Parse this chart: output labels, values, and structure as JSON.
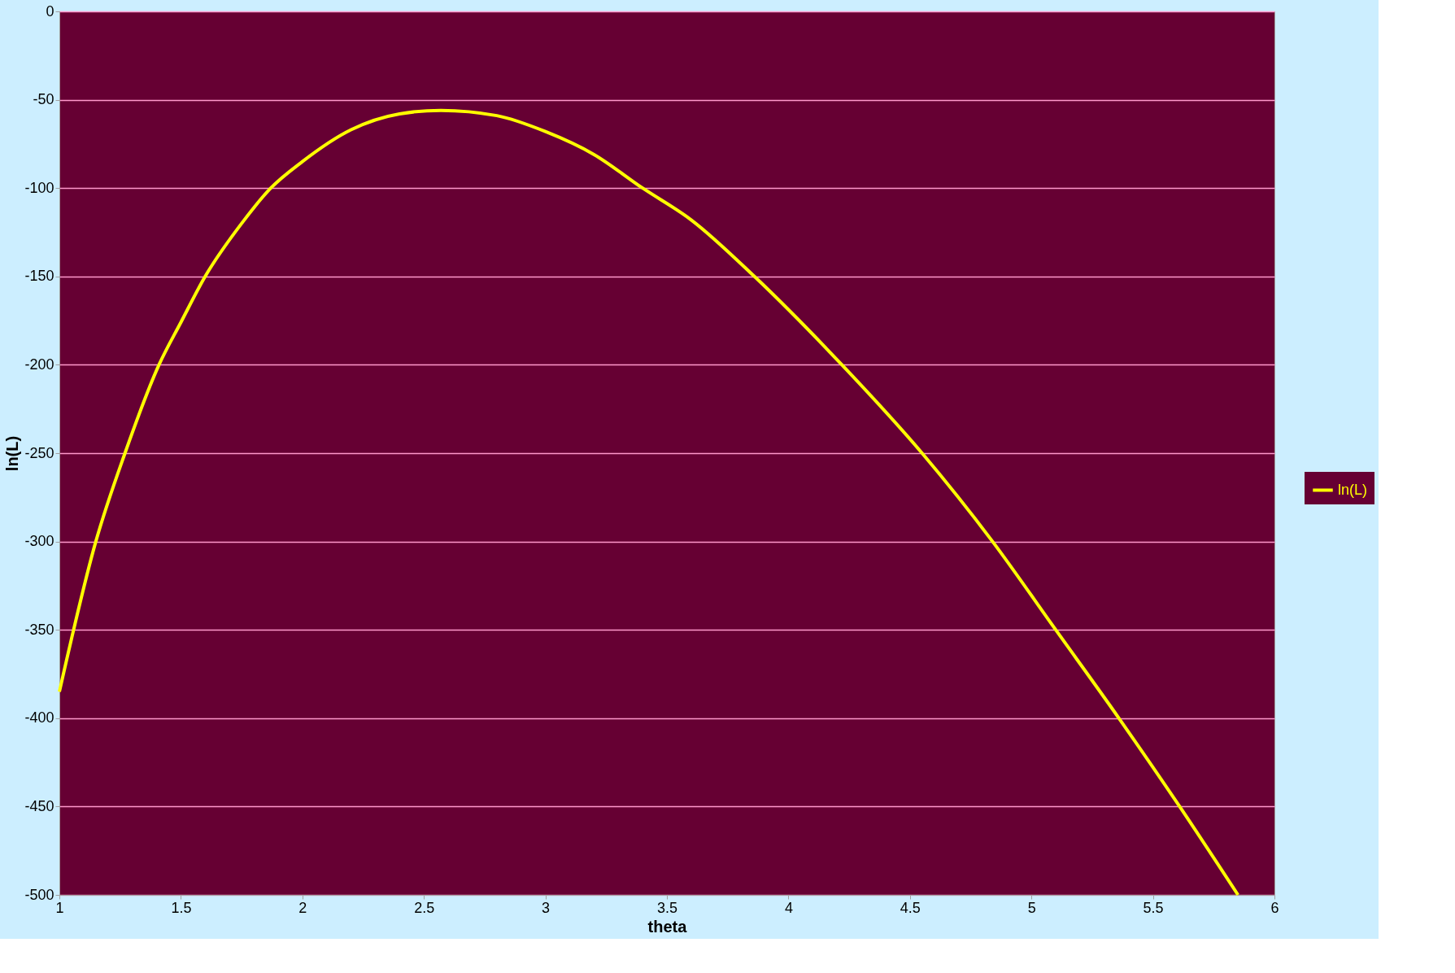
{
  "chart_data": {
    "type": "line",
    "xlabel": "theta",
    "ylabel": "ln(L)",
    "x": [
      1,
      1.15,
      1.27,
      1.41,
      1.5,
      1.6,
      1.75,
      1.87,
      2,
      2.2,
      2.4,
      2.57,
      2.8,
      3,
      3.2,
      3.4,
      3.6,
      3.86,
      4.22,
      4.55,
      4.84,
      5.1,
      5.36,
      5.61,
      5.85
    ],
    "series": [
      {
        "name": "ln(L)",
        "color": "#ffff00",
        "values": [
          -385,
          -300,
          -250,
          -200,
          -176,
          -150,
          -120,
          -100,
          -85,
          -67,
          -58,
          -56,
          -59,
          -68,
          -81,
          -100,
          -118,
          -150,
          -200,
          -250,
          -300,
          -350,
          -400,
          -450,
          -500
        ]
      }
    ],
    "xlim": [
      1,
      6
    ],
    "xticks": [
      1,
      1.5,
      2,
      2.5,
      3,
      3.5,
      4,
      4.5,
      5,
      5.5,
      6
    ],
    "ylim": [
      -500,
      0
    ],
    "yticks": [
      -500,
      -450,
      -400,
      -350,
      -300,
      -250,
      -200,
      -150,
      -100,
      -50,
      0
    ],
    "grid": "y",
    "legend": "right",
    "marker": "none",
    "line_style": "solid"
  }
}
